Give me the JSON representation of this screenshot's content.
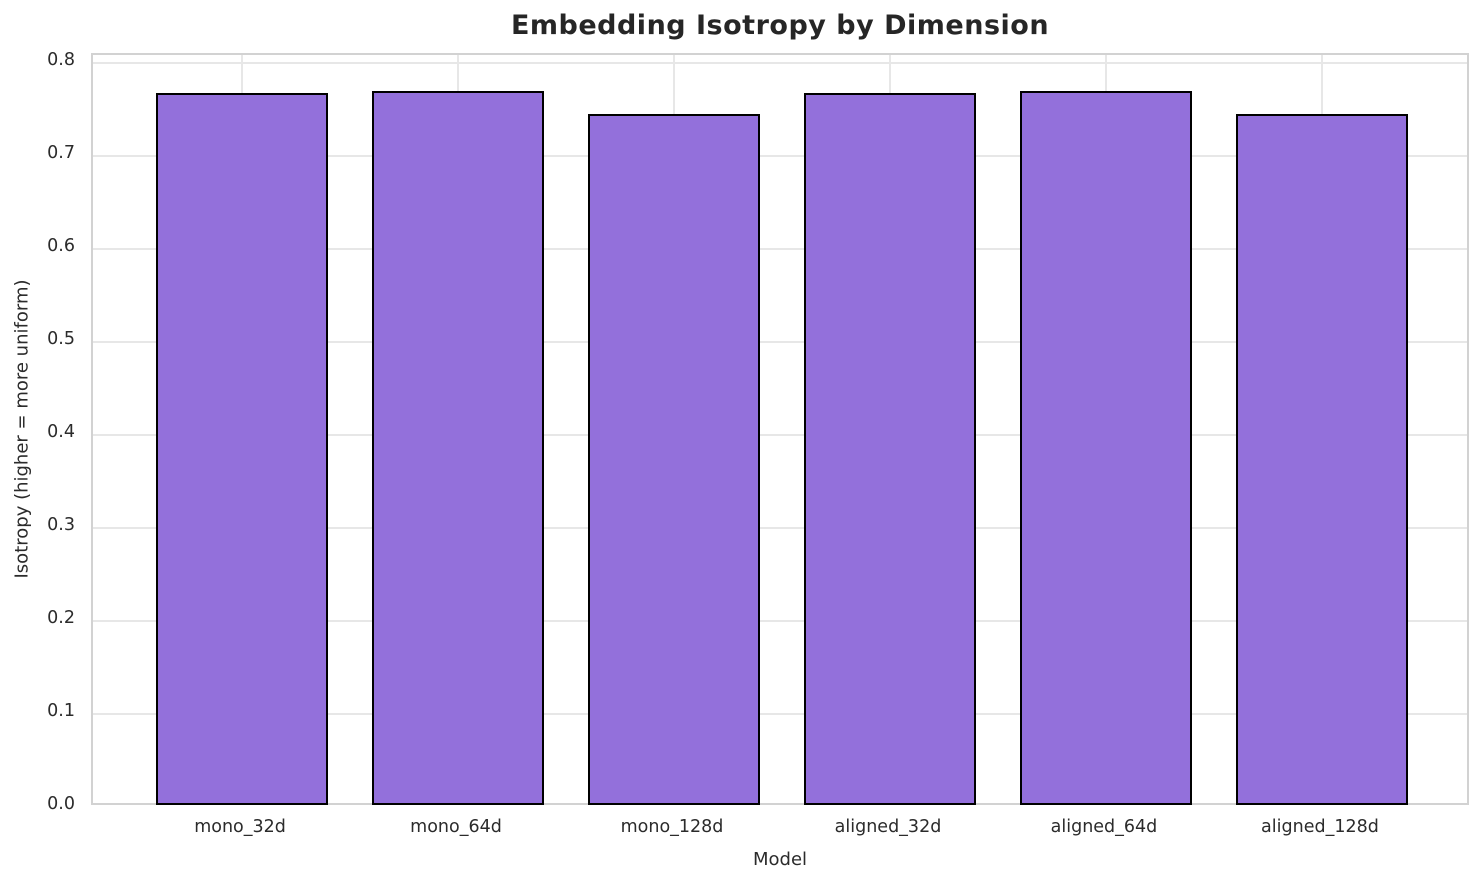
{
  "chart_data": {
    "type": "bar",
    "title": "Embedding Isotropy by Dimension",
    "xlabel": "Model",
    "ylabel": "Isotropy (higher = more uniform)",
    "categories": [
      "mono_32d",
      "mono_64d",
      "mono_128d",
      "aligned_32d",
      "aligned_64d",
      "aligned_128d"
    ],
    "values": [
      0.768,
      0.77,
      0.745,
      0.768,
      0.77,
      0.745
    ],
    "ylim": [
      0.0,
      0.809
    ],
    "yticks": [
      "0.0",
      "0.1",
      "0.2",
      "0.3",
      "0.4",
      "0.5",
      "0.6",
      "0.7",
      "0.8"
    ],
    "grid": "on",
    "legend": "none",
    "bar_color": "#9370DB",
    "bar_edge_color": "#000000",
    "grid_color": "#e7e7e7",
    "spine_color": "#d2d2d2",
    "text_color": "#2b2b2b",
    "title_color": "#262626",
    "background_color": "#ffffff"
  }
}
